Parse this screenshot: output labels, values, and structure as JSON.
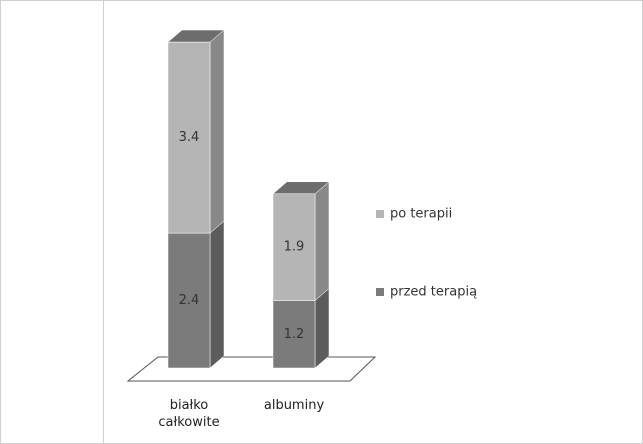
{
  "chart_data": {
    "type": "bar3d_stacked",
    "categories": [
      "białko całkowite",
      "albuminy"
    ],
    "series": [
      {
        "name": "przed terapią",
        "color": "#7b7b7b",
        "values": [
          2.4,
          1.2
        ]
      },
      {
        "name": "po terapii",
        "color": "#b5b5b5",
        "values": [
          3.4,
          1.9
        ]
      }
    ],
    "legend": "right"
  }
}
